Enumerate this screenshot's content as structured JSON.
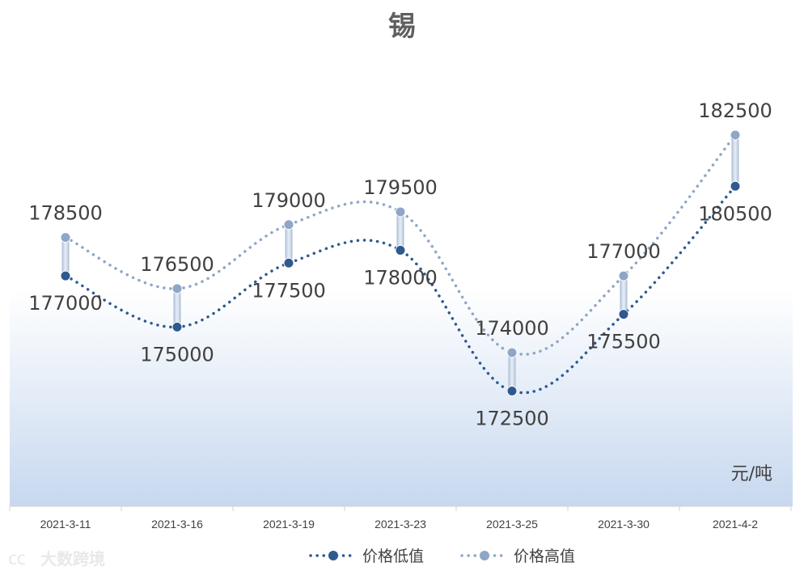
{
  "chart_data": {
    "type": "line",
    "title": "锡",
    "categories": [
      "2021-3-11",
      "2021-3-16",
      "2021-3-19",
      "2021-3-23",
      "2021-3-25",
      "2021-3-30",
      "2021-4-2"
    ],
    "series": [
      {
        "name": "价格低值",
        "values": [
          177000,
          175000,
          177500,
          178000,
          172500,
          175500,
          180500
        ],
        "color": "#2e5a8f",
        "style": "dotted-smooth"
      },
      {
        "name": "价格高值",
        "values": [
          178500,
          176500,
          179000,
          179500,
          174000,
          177000,
          182500
        ],
        "color": "#8fa6c6",
        "style": "dotted-smooth"
      }
    ],
    "unit_label": "元/吨",
    "ylim": [
      168000,
      185500
    ],
    "y_axis_visible": false,
    "grid": false,
    "high_low_lines": true,
    "legend_position": "bottom",
    "plot_background": "gradient white-to-light-blue"
  },
  "watermark": "大数跨境"
}
